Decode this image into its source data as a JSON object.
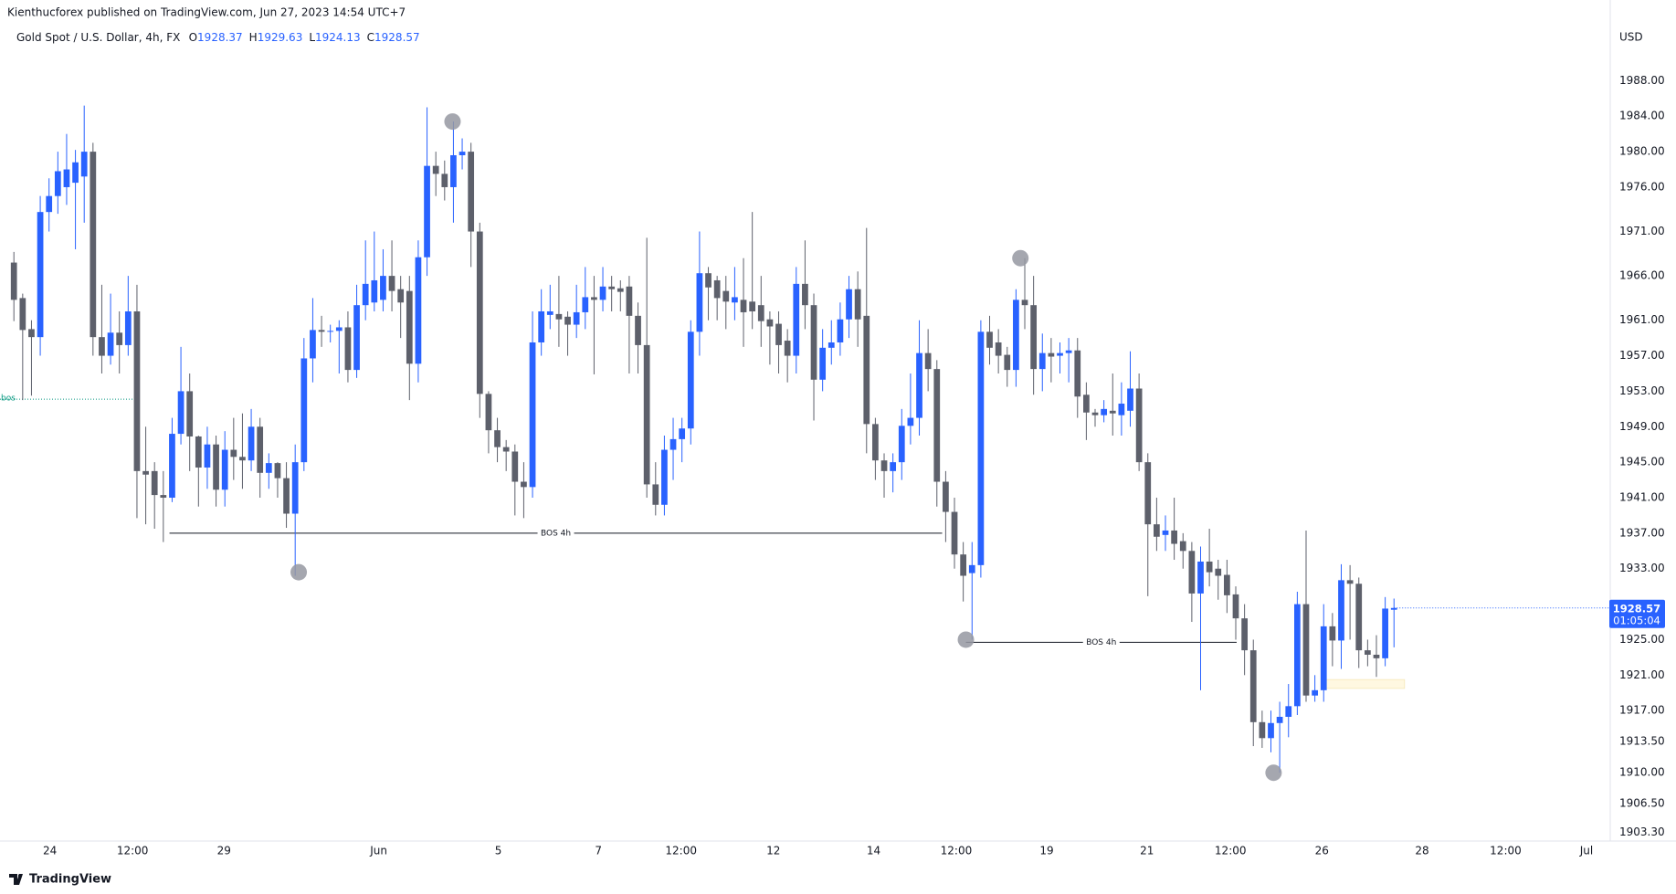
{
  "header": "Kienthucforex published on TradingView.com, Jun 27, 2023 14:54 UTC+7",
  "footer": "TradingView",
  "chart_data": {
    "type": "candlestick",
    "title": "Gold Spot / U.S. Dollar, 4h, FX",
    "ohlc_labels": [
      "O",
      "H",
      "L",
      "C"
    ],
    "currency": "USD",
    "countdown": "01:05:04",
    "up_color": "#2962ff",
    "down_color": "#5d606b",
    "candles": [
      [
        1967.5,
        1968.7,
        1960.9,
        1963.3
      ],
      [
        1963.5,
        1964,
        1952,
        1959.9
      ],
      [
        1960,
        1961,
        1952.5,
        1959.1
      ],
      [
        1959.1,
        1975,
        1957,
        1973.2
      ],
      [
        1973.2,
        1977,
        1971,
        1975
      ],
      [
        1975,
        1980,
        1973,
        1977.8
      ],
      [
        1976,
        1982,
        1974,
        1978
      ],
      [
        1976.5,
        1980.2,
        1969,
        1978.8
      ],
      [
        1977.2,
        1985.2,
        1972,
        1980
      ],
      [
        1980,
        1981,
        1957,
        1959.1
      ],
      [
        1959.1,
        1965,
        1955,
        1957
      ],
      [
        1957,
        1964,
        1956,
        1959.6
      ],
      [
        1959.6,
        1962,
        1955,
        1958.2
      ],
      [
        1958.2,
        1966,
        1957,
        1962
      ],
      [
        1962,
        1965,
        1938.7,
        1944
      ],
      [
        1944,
        1949,
        1938,
        1943.6
      ],
      [
        1944,
        1945,
        1937.5,
        1941.3
      ],
      [
        1941.3,
        1944,
        1936,
        1941
      ],
      [
        1941,
        1950,
        1940.5,
        1948.2
      ],
      [
        1948.2,
        1958,
        1947,
        1953
      ],
      [
        1953,
        1955,
        1944,
        1947.9
      ],
      [
        1947.9,
        1948,
        1940,
        1944.4
      ],
      [
        1944.4,
        1949,
        1942,
        1947
      ],
      [
        1947,
        1948,
        1940,
        1941.9
      ],
      [
        1941.9,
        1948.5,
        1940,
        1946.4
      ],
      [
        1946.4,
        1950,
        1943,
        1945.6
      ],
      [
        1945.6,
        1950.5,
        1942,
        1945.2
      ],
      [
        1945.2,
        1951,
        1944,
        1949
      ],
      [
        1949,
        1950,
        1941,
        1943.8
      ],
      [
        1943.8,
        1946,
        1942,
        1944.9
      ],
      [
        1944.9,
        1945,
        1941,
        1943.2
      ],
      [
        1943.2,
        1945,
        1937.6,
        1939.2
      ],
      [
        1939.2,
        1947,
        1932.2,
        1945
      ],
      [
        1945,
        1959,
        1944,
        1956.7
      ],
      [
        1956.7,
        1963.5,
        1954,
        1959.9
      ],
      [
        1959.9,
        1961.5,
        1958,
        1959.7
      ],
      [
        1959.7,
        1960.5,
        1958.5,
        1959.8
      ],
      [
        1959.8,
        1961,
        1955,
        1960.2
      ],
      [
        1960.2,
        1962,
        1954,
        1955.4
      ],
      [
        1955.4,
        1965,
        1954.5,
        1962.7
      ],
      [
        1962.7,
        1970,
        1961,
        1965.1
      ],
      [
        1963,
        1971,
        1962,
        1965.5
      ],
      [
        1963.3,
        1969,
        1962,
        1966
      ],
      [
        1966,
        1970,
        1962,
        1964.3
      ],
      [
        1964.5,
        1966,
        1959,
        1963
      ],
      [
        1964.3,
        1966,
        1952,
        1956.1
      ],
      [
        1956.1,
        1970,
        1954,
        1968.1
      ],
      [
        1968.1,
        1985,
        1966,
        1978.4
      ],
      [
        1978.4,
        1980,
        1975,
        1977.5
      ],
      [
        1977.5,
        1979,
        1974.5,
        1976
      ],
      [
        1976,
        1983.4,
        1972,
        1979.6
      ],
      [
        1979.6,
        1981.5,
        1978,
        1980
      ],
      [
        1980,
        1981,
        1967,
        1971
      ],
      [
        1971,
        1972,
        1950,
        1952.7
      ],
      [
        1952.7,
        1953,
        1946,
        1948.6
      ],
      [
        1948.6,
        1950,
        1945,
        1946.7
      ],
      [
        1946.7,
        1947.5,
        1944,
        1946.2
      ],
      [
        1946.2,
        1947,
        1939,
        1942.8
      ],
      [
        1942.8,
        1945,
        1938.7,
        1942.2
      ],
      [
        1942.2,
        1962,
        1941,
        1958.5
      ],
      [
        1958.5,
        1964.5,
        1957,
        1962
      ],
      [
        1961.6,
        1965,
        1960,
        1962
      ],
      [
        1961.7,
        1966,
        1958,
        1961.1
      ],
      [
        1961.4,
        1962,
        1957,
        1960.5
      ],
      [
        1960.5,
        1965,
        1959,
        1961.9
      ],
      [
        1961.9,
        1967,
        1960,
        1963.6
      ],
      [
        1963.6,
        1966,
        1954.9,
        1963.3
      ],
      [
        1963.3,
        1967,
        1962,
        1964.8
      ],
      [
        1964.8,
        1966,
        1962,
        1964.5
      ],
      [
        1964.6,
        1965.5,
        1962,
        1964.2
      ],
      [
        1964.8,
        1966,
        1955,
        1961.5
      ],
      [
        1961.5,
        1963,
        1955,
        1958.2
      ],
      [
        1958.2,
        1970.3,
        1941,
        1942.5
      ],
      [
        1942.5,
        1945,
        1939,
        1940.2
      ],
      [
        1940.2,
        1948,
        1939,
        1946.4
      ],
      [
        1946.4,
        1950,
        1943,
        1947.6
      ],
      [
        1947.6,
        1950,
        1945,
        1948.8
      ],
      [
        1948.8,
        1961,
        1947,
        1959.7
      ],
      [
        1959.7,
        1971,
        1957,
        1966.3
      ],
      [
        1966.3,
        1967,
        1961,
        1964.7
      ],
      [
        1965.5,
        1966,
        1961,
        1963.5
      ],
      [
        1964.3,
        1966,
        1960,
        1963.1
      ],
      [
        1963,
        1967,
        1961,
        1963.6
      ],
      [
        1963.3,
        1968,
        1958,
        1961.9
      ],
      [
        1963.1,
        1973.2,
        1960,
        1962
      ],
      [
        1962.7,
        1966,
        1958,
        1960.9
      ],
      [
        1961.1,
        1962,
        1956,
        1960.3
      ],
      [
        1960.6,
        1962,
        1955,
        1958.2
      ],
      [
        1958.7,
        1960,
        1954,
        1957
      ],
      [
        1957,
        1967,
        1955,
        1965.1
      ],
      [
        1965.1,
        1970,
        1960,
        1962.7
      ],
      [
        1962.7,
        1964,
        1949.7,
        1954.3
      ],
      [
        1954.3,
        1960,
        1953,
        1957.9
      ],
      [
        1957.9,
        1961,
        1956,
        1958.5
      ],
      [
        1958.5,
        1963,
        1957,
        1961.1
      ],
      [
        1961.1,
        1966,
        1959,
        1964.5
      ],
      [
        1964.5,
        1966.5,
        1958,
        1961.1
      ],
      [
        1961.5,
        1971.4,
        1946,
        1949.3
      ],
      [
        1949.3,
        1950,
        1943,
        1945.2
      ],
      [
        1945.2,
        1946,
        1941,
        1944
      ],
      [
        1944,
        1946,
        1941.6,
        1945
      ],
      [
        1945,
        1951,
        1943,
        1949.1
      ],
      [
        1949.1,
        1955,
        1947,
        1950
      ],
      [
        1950,
        1961,
        1948,
        1957.3
      ],
      [
        1957.3,
        1960,
        1953,
        1955.5
      ],
      [
        1955.5,
        1956.5,
        1940,
        1942.8
      ],
      [
        1942.8,
        1944,
        1936,
        1939.4
      ],
      [
        1939.4,
        1941,
        1933,
        1934.6
      ],
      [
        1934.6,
        1936,
        1929.3,
        1932.2
      ],
      [
        1932.5,
        1936,
        1925,
        1933.4
      ],
      [
        1933.4,
        1961,
        1932,
        1959.7
      ],
      [
        1959.7,
        1961.5,
        1956,
        1957.9
      ],
      [
        1958.5,
        1960,
        1955,
        1957
      ],
      [
        1957.1,
        1958,
        1953.5,
        1955.4
      ],
      [
        1955.4,
        1964.5,
        1953.5,
        1963.3
      ],
      [
        1963.3,
        1968,
        1960,
        1962.7
      ],
      [
        1962.7,
        1966,
        1952.6,
        1955.5
      ],
      [
        1955.5,
        1959.5,
        1953,
        1957.3
      ],
      [
        1957.3,
        1959,
        1954,
        1956.9
      ],
      [
        1957,
        1958.5,
        1955,
        1957.3
      ],
      [
        1957.3,
        1959,
        1954,
        1957.6
      ],
      [
        1957.6,
        1959,
        1950,
        1952.4
      ],
      [
        1952.6,
        1954,
        1947.5,
        1950.6
      ],
      [
        1950.6,
        1951,
        1949,
        1950.3
      ],
      [
        1950.3,
        1952,
        1949.5,
        1951
      ],
      [
        1950.8,
        1955,
        1948,
        1950.5
      ],
      [
        1950.3,
        1954,
        1948,
        1951.6
      ],
      [
        1950.8,
        1957.5,
        1949,
        1953.3
      ],
      [
        1953.3,
        1955,
        1944,
        1945
      ],
      [
        1945,
        1946,
        1929.9,
        1938
      ],
      [
        1938,
        1941,
        1935,
        1936.6
      ],
      [
        1936.8,
        1939,
        1935,
        1937.3
      ],
      [
        1937.3,
        1941,
        1934,
        1935.8
      ],
      [
        1936.1,
        1937,
        1933,
        1935
      ],
      [
        1935,
        1936,
        1927,
        1930.2
      ],
      [
        1930.2,
        1935.5,
        1919.3,
        1933.8
      ],
      [
        1933.8,
        1937.5,
        1931,
        1932.6
      ],
      [
        1933,
        1934,
        1929.5,
        1932.2
      ],
      [
        1932.3,
        1934,
        1928,
        1930
      ],
      [
        1930.1,
        1931,
        1925,
        1927.4
      ],
      [
        1927.4,
        1929,
        1921,
        1923.8
      ],
      [
        1923.8,
        1925,
        1913,
        1915.7
      ],
      [
        1915.7,
        1917,
        1912.8,
        1913.9
      ],
      [
        1913.9,
        1917,
        1912.3,
        1915.6
      ],
      [
        1915.6,
        1918,
        1910,
        1916.3
      ],
      [
        1916.3,
        1920,
        1914,
        1917.5
      ],
      [
        1917.5,
        1930.4,
        1916.5,
        1929
      ],
      [
        1929,
        1937.3,
        1918,
        1918.7
      ],
      [
        1918.7,
        1921,
        1918,
        1919.3
      ],
      [
        1919.3,
        1929,
        1918,
        1926.5
      ],
      [
        1926.5,
        1928,
        1922,
        1924.9
      ],
      [
        1924.9,
        1933.5,
        1921.7,
        1931.7
      ],
      [
        1931.7,
        1933.4,
        1925,
        1931.3
      ],
      [
        1931.3,
        1932,
        1921.8,
        1923.8
      ],
      [
        1923.8,
        1925,
        1922,
        1923.3
      ],
      [
        1923.3,
        1925.5,
        1920.8,
        1922.9
      ],
      [
        1922.9,
        1929.8,
        1922,
        1928.5
      ],
      [
        1928.37,
        1929.63,
        1924.13,
        1928.57
      ]
    ],
    "xlim": [
      -1.58,
      181.6
    ],
    "xticks": [
      {
        "value": 4.1,
        "label": "24"
      },
      {
        "value": 13.5,
        "label": "12:00"
      },
      {
        "value": 23.9,
        "label": "29"
      },
      {
        "value": 41.5,
        "label": "Jun"
      },
      {
        "value": 55.1,
        "label": "5"
      },
      {
        "value": 66.5,
        "label": "7"
      },
      {
        "value": 75.9,
        "label": "12:00"
      },
      {
        "value": 86.4,
        "label": "12"
      },
      {
        "value": 97.8,
        "label": "14"
      },
      {
        "value": 107.2,
        "label": "12:00"
      },
      {
        "value": 117.5,
        "label": "19"
      },
      {
        "value": 128.9,
        "label": "21"
      },
      {
        "value": 138.4,
        "label": "12:00"
      },
      {
        "value": 148.8,
        "label": "26"
      },
      {
        "value": 160.2,
        "label": "28"
      },
      {
        "value": 169.7,
        "label": "12:00"
      },
      {
        "value": 178.9,
        "label": "Jul"
      }
    ],
    "ylim": [
      1902.3,
      1993.7
    ],
    "yticks": [
      {
        "value": 1988,
        "label": "1988.00"
      },
      {
        "value": 1984,
        "label": "1984.00"
      },
      {
        "value": 1980,
        "label": "1980.00"
      },
      {
        "value": 1976,
        "label": "1976.00"
      },
      {
        "value": 1971,
        "label": "1971.00"
      },
      {
        "value": 1966,
        "label": "1966.00"
      },
      {
        "value": 1961,
        "label": "1961.00"
      },
      {
        "value": 1957,
        "label": "1957.00"
      },
      {
        "value": 1953,
        "label": "1953.00"
      },
      {
        "value": 1949,
        "label": "1949.00"
      },
      {
        "value": 1945,
        "label": "1945.00"
      },
      {
        "value": 1941,
        "label": "1941.00"
      },
      {
        "value": 1937,
        "label": "1937.00"
      },
      {
        "value": 1933,
        "label": "1933.00"
      },
      {
        "value": 1925,
        "label": "1925.00"
      },
      {
        "value": 1921,
        "label": "1921.00"
      },
      {
        "value": 1917,
        "label": "1917.00"
      },
      {
        "value": 1913.5,
        "label": "1913.50"
      },
      {
        "value": 1910,
        "label": "1910.00"
      },
      {
        "value": 1906.5,
        "label": "1906.50"
      },
      {
        "value": 1903.3,
        "label": "1903.30"
      }
    ],
    "grid": false,
    "annotations": [
      {
        "label": "BOS 4h",
        "x": [
          17.7,
          105.6
        ],
        "y": 1937,
        "color": "#131722",
        "dotted": false
      },
      {
        "label": "BOS 4h",
        "x": [
          108.3,
          139.1
        ],
        "y": 1924.7,
        "color": "#131722",
        "dotted": false
      },
      {
        "label": "bos",
        "x": [
          -1.58,
          14.3
        ],
        "y": 1952.1,
        "color": "#089981",
        "dotted": true
      }
    ],
    "swing_points": {
      "x": [
        32.4,
        49.9,
        108.3,
        114.5,
        143.3
      ],
      "y": [
        1932.6,
        1983.4,
        1925,
        1968,
        1910
      ],
      "color": "#9598a1"
    },
    "zone": {
      "x": [
        148.8,
        158.2
      ],
      "y": [
        1919.5,
        1920.5
      ],
      "color": "#fff8e1"
    }
  }
}
